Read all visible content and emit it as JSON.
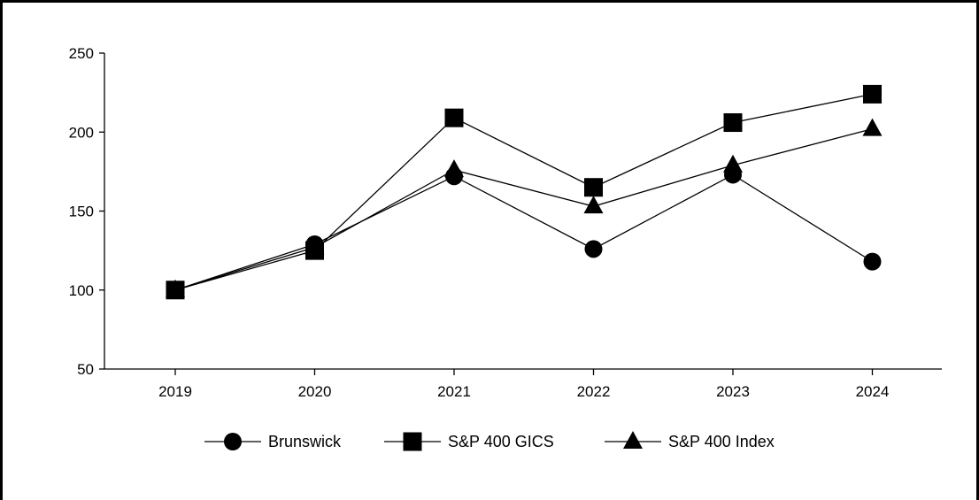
{
  "chart_data": {
    "type": "line",
    "title": "",
    "xlabel": "",
    "ylabel": "",
    "categories": [
      "2019",
      "2020",
      "2021",
      "2022",
      "2023",
      "2024"
    ],
    "ylim": [
      50,
      250
    ],
    "yticks": [
      "50",
      "100",
      "150",
      "200",
      "250"
    ],
    "grid": false,
    "legend_position": "bottom",
    "series": [
      {
        "name": "Brunswick",
        "marker": "circle",
        "values": [
          100,
          129,
          172,
          126,
          173,
          118
        ]
      },
      {
        "name": "S&P 400 GICS",
        "marker": "square",
        "values": [
          100,
          125,
          209,
          165,
          206,
          224
        ]
      },
      {
        "name": "S&P 400 Index",
        "marker": "triangle",
        "values": [
          100,
          127,
          176,
          153,
          179,
          202
        ]
      }
    ]
  },
  "colors": {
    "line": "#000000",
    "marker": "#000000",
    "background": "#ffffff"
  }
}
